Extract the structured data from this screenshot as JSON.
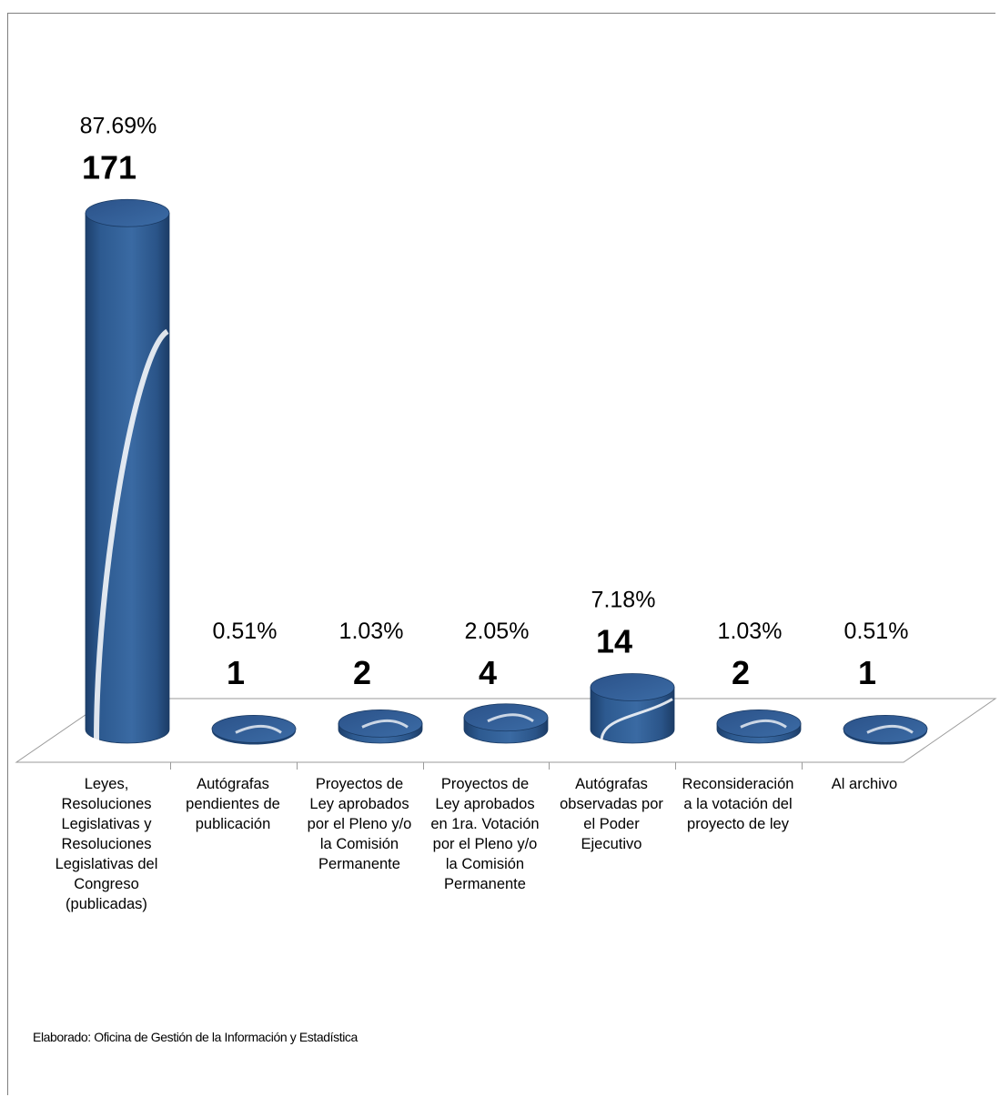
{
  "chart_data": {
    "type": "bar",
    "style": "3d-cylinder",
    "categories": [
      "Leyes,\nResoluciones\nLegislativas y\nResoluciones\nLegislativas del\nCongreso\n(publicadas)",
      "Autógrafas\npendientes de\npublicación",
      "Proyectos de\nLey aprobados\npor el Pleno y/o\nla Comisión\nPermanente",
      "Proyectos de\nLey aprobados\nen 1ra. Votación\npor el Pleno y/o\nla Comisión\nPermanente",
      "Autógrafas\nobservadas por\nel Poder\nEjecutivo",
      "Reconsideración\na la votación del\nproyecto de ley",
      "Al archivo"
    ],
    "values": [
      171,
      1,
      2,
      4,
      14,
      2,
      1
    ],
    "value_labels": [
      "171",
      "1",
      "2",
      "4",
      "14",
      "2",
      "1"
    ],
    "percent_labels": [
      "87.69%",
      "0.51%",
      "1.03%",
      "2.05%",
      "7.18%",
      "1.03%",
      "0.51%"
    ],
    "bar_color": "#2f5c92",
    "grid": false,
    "legend": "none"
  },
  "footnote": "Elaborado: Oficina de Gestión de la Información y Estadística"
}
